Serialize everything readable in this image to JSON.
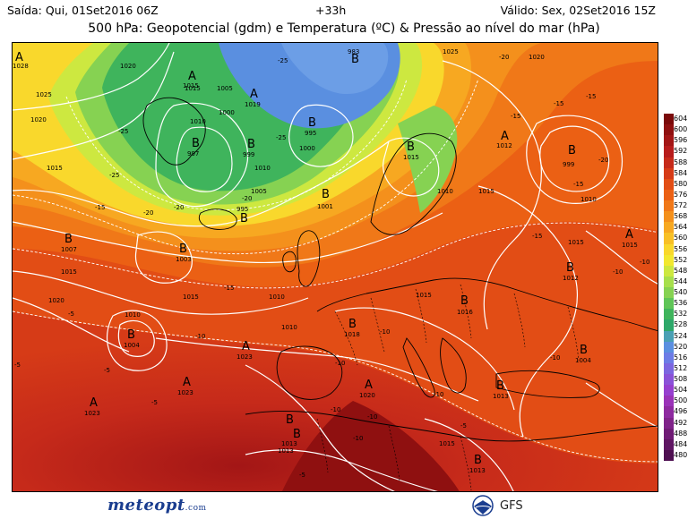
{
  "header": {
    "run_info": "Saída: Qui, 01Set2016 06Z",
    "forecast_hour": "+33h",
    "valid_info": "Válido: Sex, 02Set2016 15Z",
    "title": "500 hPa: Geopotencial (gdm) e Temperatura (ºC) & Pressão ao nível do mar (hPa)"
  },
  "colorbar": {
    "labels": [
      "604",
      "600",
      "596",
      "592",
      "588",
      "584",
      "580",
      "576",
      "572",
      "568",
      "564",
      "560",
      "556",
      "552",
      "548",
      "544",
      "540",
      "536",
      "532",
      "528",
      "524",
      "520",
      "516",
      "512",
      "508",
      "504",
      "500",
      "496",
      "492",
      "488",
      "484",
      "480"
    ],
    "colors": [
      "#7a0a0a",
      "#8f1010",
      "#a31616",
      "#b71c1c",
      "#c62a1a",
      "#d63b17",
      "#e24d15",
      "#eb6014",
      "#f07818",
      "#f4901c",
      "#f7a821",
      "#f8c026",
      "#f9d82c",
      "#f2e830",
      "#cde840",
      "#a7df4c",
      "#86d252",
      "#5fc557",
      "#3fb45c",
      "#2ea86a",
      "#4aa0b4",
      "#5a8fe0",
      "#6c7ce6",
      "#7c66e0",
      "#8a52d8",
      "#963fcf",
      "#9a32b8",
      "#8e2aa0",
      "#80238a",
      "#701c76",
      "#5f1663",
      "#4e1051"
    ]
  },
  "map": {
    "highs": [
      {
        "letter": "A",
        "value": "1015"
      },
      {
        "letter": "A",
        "value": "1019"
      },
      {
        "letter": "A",
        "value": "1012"
      },
      {
        "letter": "A",
        "value": "1023"
      },
      {
        "letter": "A",
        "value": "1023"
      },
      {
        "letter": "A",
        "value": "1023"
      },
      {
        "letter": "A",
        "value": "1020"
      },
      {
        "letter": "A",
        "value": "1015"
      },
      {
        "letter": "A",
        "value": "1028"
      }
    ],
    "lows": [
      {
        "letter": "B",
        "value": "983"
      },
      {
        "letter": "B",
        "value": "995"
      },
      {
        "letter": "B",
        "value": "999"
      },
      {
        "letter": "B",
        "value": "997"
      },
      {
        "letter": "B",
        "value": "995"
      },
      {
        "letter": "B",
        "value": "1001"
      },
      {
        "letter": "B",
        "value": "1003"
      },
      {
        "letter": "B",
        "value": "1007"
      },
      {
        "letter": "B",
        "value": "1004"
      },
      {
        "letter": "B",
        "value": "999"
      },
      {
        "letter": "B",
        "value": "1015"
      },
      {
        "letter": "B",
        "value": "1016"
      },
      {
        "letter": "B",
        "value": "1018"
      },
      {
        "letter": "B",
        "value": "1012"
      },
      {
        "letter": "B",
        "value": "1004"
      },
      {
        "letter": "B",
        "value": "1013"
      },
      {
        "letter": "B",
        "value": "1013"
      },
      {
        "letter": "B",
        "value": "1013"
      },
      {
        "letter": "B",
        "value": "1013"
      }
    ],
    "isobar_labels": [
      "1020",
      "1015",
      "1010",
      "1005",
      "1000",
      "1025",
      "1020",
      "1015",
      "1010",
      "1005",
      "1000",
      "1015",
      "1010",
      "1020",
      "1015",
      "1010",
      "1015",
      "1020",
      "1025",
      "1015",
      "1010",
      "1015",
      "1010",
      "1010",
      "1015"
    ],
    "temperature_labels": [
      "-25",
      "-25",
      "-20",
      "-20",
      "-20",
      "-25",
      "-25",
      "-15",
      "-15",
      "-20",
      "-15",
      "-15",
      "-10",
      "-10",
      "-10",
      "-5",
      "-5",
      "-5",
      "-10",
      "-10",
      "-5",
      "-10",
      "-5",
      "-15",
      "-20",
      "-15",
      "-10",
      "-10",
      "-10",
      "-15",
      "-5",
      "-10"
    ],
    "colors": {
      "isobar": "#ffffff",
      "temperature": "#ffffff",
      "coastline": "#000000",
      "border": "#000000"
    }
  },
  "footer": {
    "brand": "meteopt",
    "brand_suffix": ".com",
    "model": "GFS"
  }
}
